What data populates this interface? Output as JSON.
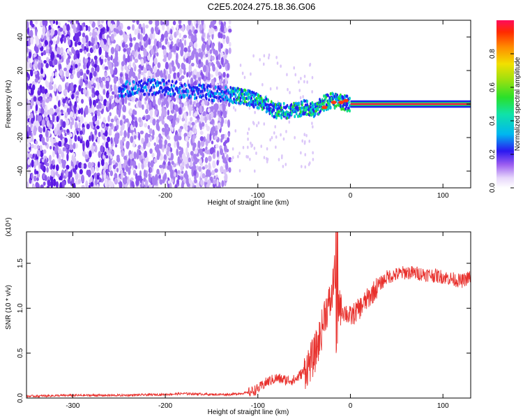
{
  "title": "C2E5.2024.275.18.36.G06",
  "chart_data": [
    {
      "type": "heatmap",
      "xlabel": "Height of straight line (km)",
      "ylabel": "Frequency (Hz)",
      "xlim": [
        -350,
        130
      ],
      "ylim": [
        -50,
        50
      ],
      "x_ticks": [
        -300,
        -200,
        -100,
        0,
        100
      ],
      "y_ticks": [
        -40,
        -20,
        0,
        20,
        40
      ],
      "colorbar": {
        "label": "Normalized spectral amplitude",
        "range": [
          0,
          1
        ],
        "ticks": [
          0.0,
          0.2,
          0.4,
          0.6,
          0.8
        ],
        "tick_labels": [
          "0.0",
          "0.2",
          "0.4",
          "0.6",
          "0.8"
        ]
      },
      "signal_track": [
        {
          "x": -250,
          "y": 8
        },
        {
          "x": -230,
          "y": 10
        },
        {
          "x": -200,
          "y": 10
        },
        {
          "x": -180,
          "y": 8
        },
        {
          "x": -140,
          "y": 6
        },
        {
          "x": -120,
          "y": 5
        },
        {
          "x": -100,
          "y": 2
        },
        {
          "x": -80,
          "y": -4
        },
        {
          "x": -60,
          "y": -4
        },
        {
          "x": -50,
          "y": -2
        },
        {
          "x": -40,
          "y": -4
        },
        {
          "x": -30,
          "y": 0
        },
        {
          "x": -20,
          "y": 2
        },
        {
          "x": -10,
          "y": 1
        },
        {
          "x": 0,
          "y": 0
        },
        {
          "x": 130,
          "y": 0
        }
      ]
    },
    {
      "type": "line",
      "xlabel": "Height of straight line (km)",
      "ylabel": "SNR (10 * v/v)",
      "y_multiplier": "(x10⁴)",
      "xlim": [
        -350,
        130
      ],
      "ylim": [
        0,
        1.85
      ],
      "x_ticks": [
        -300,
        -200,
        -100,
        0,
        100
      ],
      "y_ticks": [
        0.0,
        0.5,
        1.0,
        1.5
      ],
      "y_tick_labels": [
        "0.0",
        "0.5",
        "1.0",
        "1.5"
      ],
      "color": "#e8302c",
      "series": [
        {
          "x": [
            -350,
            -300,
            -250,
            -200,
            -180,
            -150,
            -130,
            -110,
            -100,
            -90,
            -80,
            -70,
            -60,
            -50,
            -40,
            -35,
            -30,
            -28,
            -25,
            -20,
            -17,
            -15,
            -12,
            -10,
            0,
            10,
            20,
            30,
            40,
            60,
            80,
            100,
            120,
            130
          ],
          "values": [
            0.02,
            0.03,
            0.03,
            0.04,
            0.05,
            0.04,
            0.04,
            0.06,
            0.1,
            0.18,
            0.22,
            0.2,
            0.2,
            0.3,
            0.45,
            0.6,
            0.8,
            0.95,
            1.0,
            1.1,
            1.5,
            0.5,
            1.1,
            1.0,
            0.9,
            1.0,
            1.12,
            1.25,
            1.35,
            1.4,
            1.38,
            1.35,
            1.3,
            1.35
          ]
        }
      ]
    }
  ]
}
